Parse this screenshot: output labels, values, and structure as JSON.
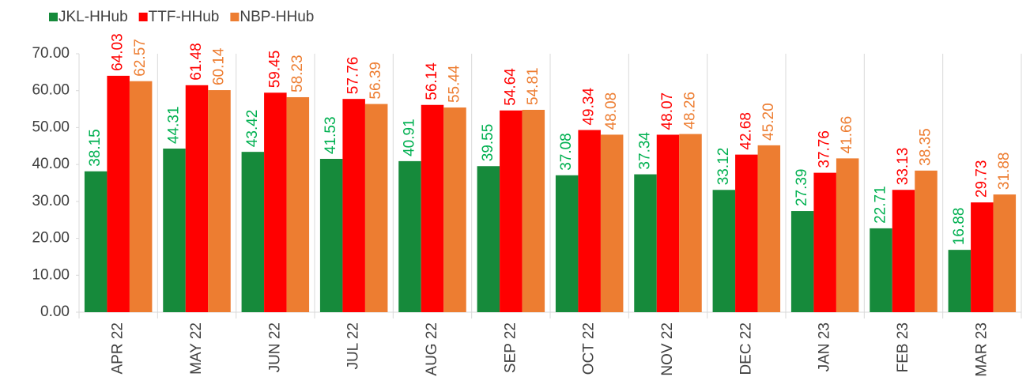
{
  "chart_data": {
    "type": "bar",
    "categories": [
      "APR 22",
      "MAY 22",
      "JUN 22",
      "JUL 22",
      "AUG 22",
      "SEP 22",
      "OCT 22",
      "NOV 22",
      "DEC 22",
      "JAN 23",
      "FEB 23",
      "MAR 23"
    ],
    "series": [
      {
        "name": "JKL-HHub",
        "color": "#168a3b",
        "label_color": "#00b050",
        "values": [
          38.15,
          44.31,
          43.42,
          41.53,
          40.91,
          39.55,
          37.08,
          37.34,
          33.12,
          27.39,
          22.71,
          16.88
        ],
        "value_labels": [
          "38.15",
          "44.31",
          "43.42",
          "41.53",
          "40.91",
          "39.55",
          "37.08",
          "37.34",
          "33.12",
          "27.39",
          "22.71",
          "16.88"
        ]
      },
      {
        "name": "TTF-HHub",
        "color": "#ff0000",
        "label_color": "#ff0000",
        "values": [
          64.03,
          61.48,
          59.45,
          57.76,
          56.14,
          54.64,
          49.34,
          48.07,
          42.68,
          37.76,
          33.13,
          29.73
        ],
        "value_labels": [
          "64.03",
          "61.48",
          "59.45",
          "57.76",
          "56.14",
          "54.64",
          "49.34",
          "48.07",
          "42.68",
          "37.76",
          "33.13",
          "29.73"
        ]
      },
      {
        "name": "NBP-HHub",
        "color": "#ed7d31",
        "label_color": "#ed7d31",
        "values": [
          62.57,
          60.14,
          58.23,
          56.39,
          55.44,
          54.81,
          48.08,
          48.26,
          45.2,
          41.66,
          38.35,
          31.88
        ],
        "value_labels": [
          "62.57",
          "60.14",
          "58.23",
          "56.39",
          "55.44",
          "54.81",
          "48.08",
          "48.26",
          "45.20",
          "41.66",
          "38.35",
          "31.88"
        ]
      }
    ],
    "ylim": [
      0,
      70
    ],
    "yticks": [
      {
        "value": 0,
        "label": "0.00"
      },
      {
        "value": 10,
        "label": "10.00"
      },
      {
        "value": 20,
        "label": "20.00"
      },
      {
        "value": 30,
        "label": "30.00"
      },
      {
        "value": 40,
        "label": "40.00"
      },
      {
        "value": 50,
        "label": "50.00"
      },
      {
        "value": 60,
        "label": "60.00"
      },
      {
        "value": 70,
        "label": "70.00"
      }
    ],
    "legend": "top-left"
  }
}
